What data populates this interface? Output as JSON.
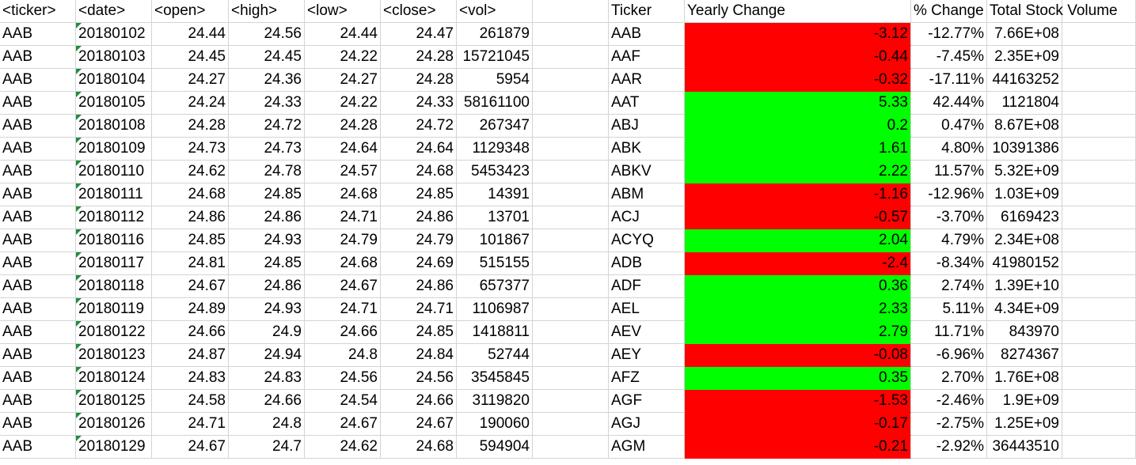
{
  "colors": {
    "negative": "#ff0000",
    "positive": "#00ff00",
    "gridline": "#d4d4d4",
    "text_number_marker": "#1e8f3a"
  },
  "headers": [
    "<ticker>",
    "<date>",
    "<open>",
    "<high>",
    "<low>",
    "<close>",
    "<vol>",
    "",
    "Ticker",
    "Yearly Change",
    "% Change",
    "Total Stock Volume",
    ""
  ],
  "rows": [
    [
      "AAB",
      "20180102",
      "24.44",
      "24.56",
      "24.44",
      "24.47",
      "261879",
      "",
      "AAB",
      "-3.12",
      "-12.77%",
      "7.66E+08",
      ""
    ],
    [
      "AAB",
      "20180103",
      "24.45",
      "24.45",
      "24.22",
      "24.28",
      "15721045",
      "",
      "AAF",
      "-0.44",
      "-7.45%",
      "2.35E+09",
      ""
    ],
    [
      "AAB",
      "20180104",
      "24.27",
      "24.36",
      "24.27",
      "24.28",
      "5954",
      "",
      "AAR",
      "-0.32",
      "-17.11%",
      "44163252",
      ""
    ],
    [
      "AAB",
      "20180105",
      "24.24",
      "24.33",
      "24.22",
      "24.33",
      "58161100",
      "",
      "AAT",
      "5.33",
      "42.44%",
      "1121804",
      ""
    ],
    [
      "AAB",
      "20180108",
      "24.28",
      "24.72",
      "24.28",
      "24.72",
      "267347",
      "",
      "ABJ",
      "0.2",
      "0.47%",
      "8.67E+08",
      ""
    ],
    [
      "AAB",
      "20180109",
      "24.73",
      "24.73",
      "24.64",
      "24.64",
      "1129348",
      "",
      "ABK",
      "1.61",
      "4.80%",
      "10391386",
      ""
    ],
    [
      "AAB",
      "20180110",
      "24.62",
      "24.78",
      "24.57",
      "24.68",
      "5453423",
      "",
      "ABKV",
      "2.22",
      "11.57%",
      "5.32E+09",
      ""
    ],
    [
      "AAB",
      "20180111",
      "24.68",
      "24.85",
      "24.68",
      "24.85",
      "14391",
      "",
      "ABM",
      "-1.16",
      "-12.96%",
      "1.03E+09",
      ""
    ],
    [
      "AAB",
      "20180112",
      "24.86",
      "24.86",
      "24.71",
      "24.86",
      "13701",
      "",
      "ACJ",
      "-0.57",
      "-3.70%",
      "6169423",
      ""
    ],
    [
      "AAB",
      "20180116",
      "24.85",
      "24.93",
      "24.79",
      "24.79",
      "101867",
      "",
      "ACYQ",
      "2.04",
      "4.79%",
      "2.34E+08",
      ""
    ],
    [
      "AAB",
      "20180117",
      "24.81",
      "24.85",
      "24.68",
      "24.69",
      "515155",
      "",
      "ADB",
      "-2.4",
      "-8.34%",
      "41980152",
      ""
    ],
    [
      "AAB",
      "20180118",
      "24.67",
      "24.86",
      "24.67",
      "24.86",
      "657377",
      "",
      "ADF",
      "0.36",
      "2.74%",
      "1.39E+10",
      ""
    ],
    [
      "AAB",
      "20180119",
      "24.89",
      "24.93",
      "24.71",
      "24.71",
      "1106987",
      "",
      "AEL",
      "2.33",
      "5.11%",
      "4.34E+09",
      ""
    ],
    [
      "AAB",
      "20180122",
      "24.66",
      "24.9",
      "24.66",
      "24.85",
      "1418811",
      "",
      "AEV",
      "2.79",
      "11.71%",
      "843970",
      ""
    ],
    [
      "AAB",
      "20180123",
      "24.87",
      "24.94",
      "24.8",
      "24.84",
      "52744",
      "",
      "AEY",
      "-0.08",
      "-6.96%",
      "8274367",
      ""
    ],
    [
      "AAB",
      "20180124",
      "24.83",
      "24.83",
      "24.56",
      "24.56",
      "3545845",
      "",
      "AFZ",
      "0.35",
      "2.70%",
      "1.76E+08",
      ""
    ],
    [
      "AAB",
      "20180125",
      "24.58",
      "24.66",
      "24.54",
      "24.66",
      "3119820",
      "",
      "AGF",
      "-1.53",
      "-2.46%",
      "1.9E+09",
      ""
    ],
    [
      "AAB",
      "20180126",
      "24.71",
      "24.8",
      "24.67",
      "24.67",
      "190060",
      "",
      "AGJ",
      "-0.17",
      "-2.75%",
      "1.25E+09",
      ""
    ],
    [
      "AAB",
      "20180129",
      "24.67",
      "24.7",
      "24.62",
      "24.68",
      "594904",
      "",
      "AGM",
      "-0.21",
      "-2.92%",
      "36443510",
      ""
    ]
  ]
}
